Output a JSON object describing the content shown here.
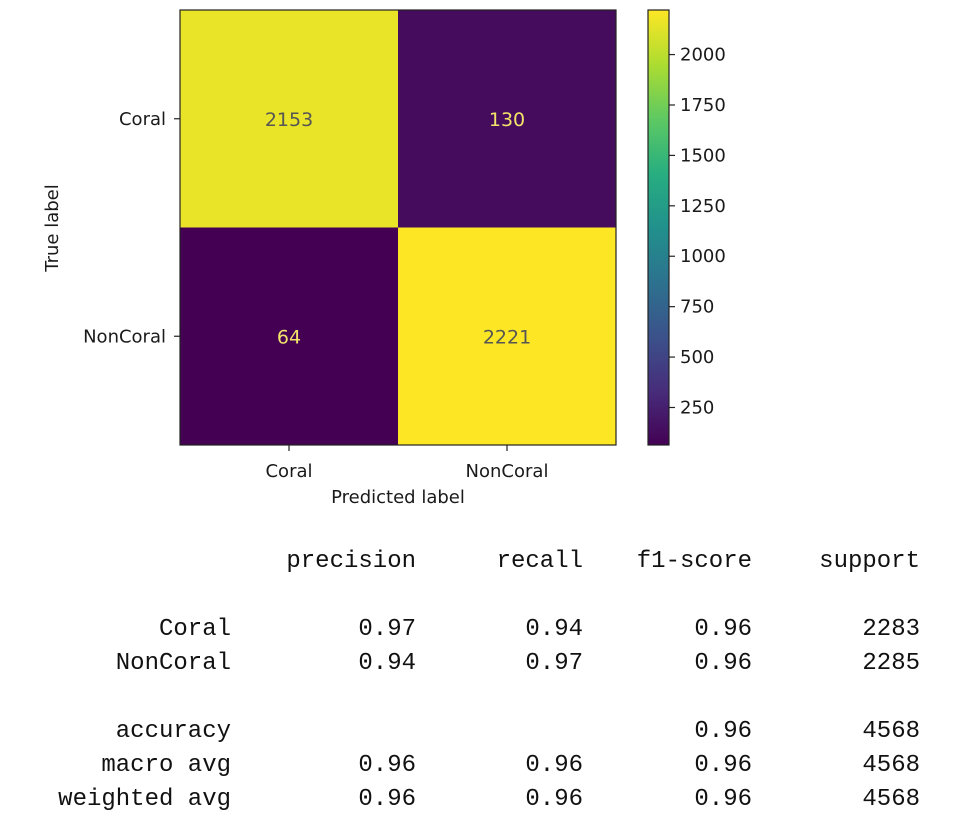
{
  "chart_data": {
    "type": "heatmap",
    "title": "",
    "xlabel": "Predicted label",
    "ylabel": "True label",
    "x_categories": [
      "Coral",
      "NonCoral"
    ],
    "y_categories": [
      "Coral",
      "NonCoral"
    ],
    "values": [
      [
        2153,
        130
      ],
      [
        64,
        2221
      ]
    ],
    "colormap": "viridis",
    "colorbar": {
      "min": 64,
      "max": 2221,
      "ticks": [
        250,
        500,
        750,
        1000,
        1250,
        1500,
        1750,
        2000
      ],
      "tick_labels": [
        "250",
        "500",
        "750",
        "1000",
        "1250",
        "1500",
        "1750",
        "2000"
      ]
    },
    "grid": false
  },
  "report": {
    "headers": [
      "precision",
      "recall",
      "f1-score",
      "support"
    ],
    "rows": [
      {
        "label": "Coral",
        "cells": [
          "0.97",
          "0.94",
          "0.96",
          "2283"
        ]
      },
      {
        "label": "NonCoral",
        "cells": [
          "0.94",
          "0.97",
          "0.96",
          "2285"
        ]
      },
      {
        "label": "accuracy",
        "cells": [
          "",
          "",
          "0.96",
          "4568"
        ]
      },
      {
        "label": "macro avg",
        "cells": [
          "0.96",
          "0.96",
          "0.96",
          "4568"
        ]
      },
      {
        "label": "weighted avg",
        "cells": [
          "0.96",
          "0.96",
          "0.96",
          "4568"
        ]
      }
    ]
  }
}
